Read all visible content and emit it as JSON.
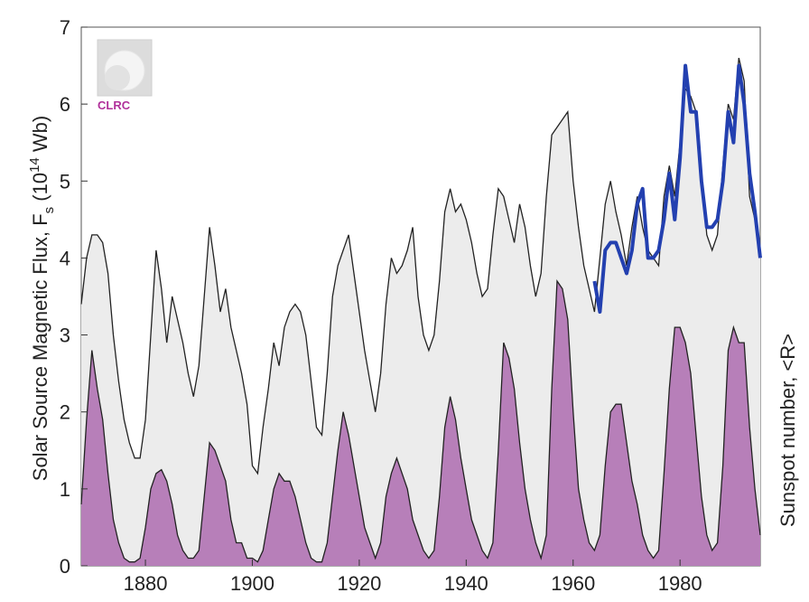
{
  "chart_data": {
    "type": "area",
    "title": "",
    "xlabel": "",
    "ylabel": "Solar Source Magnetic Flux, F",
    "ylabel_sub": "s",
    "ylabel_units_pre": " (10",
    "ylabel_units_sup": "14",
    "ylabel_units_post": " Wb)",
    "y2label": "Sunspot number, <R>",
    "xlim": [
      1868,
      1995
    ],
    "ylim": [
      0,
      7
    ],
    "x_ticks": [
      1880,
      1900,
      1920,
      1940,
      1960,
      1980
    ],
    "x_tick_labels": [
      "1880",
      "1900",
      "1920",
      "1940",
      "1960",
      "1980"
    ],
    "y_ticks": [
      0,
      1,
      2,
      3,
      4,
      5,
      6,
      7
    ],
    "y_tick_labels": [
      "0",
      "1",
      "2",
      "3",
      "4",
      "5",
      "6",
      "7"
    ],
    "logo_text": "CLRC",
    "colors": {
      "flux_fill": "#ececec",
      "flux_line": "#222222",
      "sunspot_fill": "#b77fb9",
      "sunspot_line": "#222222",
      "observed_line": "#2340b0"
    },
    "series": [
      {
        "key": "flux",
        "x": [
          1868,
          1869,
          1870,
          1871,
          1872,
          1873,
          1874,
          1875,
          1876,
          1877,
          1878,
          1879,
          1880,
          1881,
          1882,
          1883,
          1884,
          1885,
          1886,
          1887,
          1888,
          1889,
          1890,
          1891,
          1892,
          1893,
          1894,
          1895,
          1896,
          1897,
          1898,
          1899,
          1900,
          1901,
          1902,
          1903,
          1904,
          1905,
          1906,
          1907,
          1908,
          1909,
          1910,
          1911,
          1912,
          1913,
          1914,
          1915,
          1916,
          1917,
          1918,
          1919,
          1920,
          1921,
          1922,
          1923,
          1924,
          1925,
          1926,
          1927,
          1928,
          1929,
          1930,
          1931,
          1932,
          1933,
          1934,
          1935,
          1936,
          1937,
          1938,
          1939,
          1940,
          1941,
          1942,
          1943,
          1944,
          1945,
          1946,
          1947,
          1948,
          1949,
          1950,
          1951,
          1952,
          1953,
          1954,
          1955,
          1956,
          1957,
          1958,
          1959,
          1960,
          1961,
          1962,
          1963,
          1964,
          1965,
          1966,
          1967,
          1968,
          1969,
          1970,
          1971,
          1972,
          1973,
          1974,
          1975,
          1976,
          1977,
          1978,
          1979,
          1980,
          1981,
          1982,
          1983,
          1984,
          1985,
          1986,
          1987,
          1988,
          1989,
          1990,
          1991,
          1992,
          1993,
          1994,
          1995
        ],
        "values": [
          3.4,
          4.0,
          4.3,
          4.3,
          4.2,
          3.8,
          3.0,
          2.4,
          1.9,
          1.6,
          1.4,
          1.4,
          1.9,
          3.0,
          4.1,
          3.6,
          2.9,
          3.5,
          3.2,
          2.9,
          2.5,
          2.2,
          2.6,
          3.5,
          4.4,
          3.9,
          3.3,
          3.6,
          3.1,
          2.8,
          2.5,
          2.1,
          1.3,
          1.2,
          1.8,
          2.3,
          2.9,
          2.6,
          3.1,
          3.3,
          3.4,
          3.3,
          3.0,
          2.4,
          1.8,
          1.7,
          2.5,
          3.5,
          3.9,
          4.1,
          4.3,
          3.8,
          3.3,
          2.8,
          2.4,
          2.0,
          2.5,
          3.4,
          4.0,
          3.8,
          3.9,
          4.1,
          4.4,
          3.5,
          3.0,
          2.8,
          3.0,
          3.7,
          4.6,
          4.9,
          4.6,
          4.7,
          4.5,
          4.2,
          3.8,
          3.5,
          3.6,
          4.3,
          4.9,
          4.8,
          4.5,
          4.2,
          4.7,
          4.4,
          3.9,
          3.5,
          3.8,
          4.8,
          5.6,
          5.7,
          5.8,
          5.9,
          5.0,
          4.4,
          3.9,
          3.6,
          3.3,
          4.0,
          4.7,
          5.0,
          4.6,
          4.3,
          3.9,
          4.4,
          4.8,
          4.4,
          4.1,
          4.0,
          3.9,
          4.8,
          5.2,
          4.8,
          5.5,
          6.2,
          6.1,
          5.9,
          5.1,
          4.3,
          4.1,
          4.3,
          5.2,
          6.0,
          5.8,
          6.6,
          6.3,
          4.8,
          4.5,
          4.1
        ],
        "y_scale": "left"
      },
      {
        "key": "sunspot",
        "x": [
          1868,
          1869,
          1870,
          1871,
          1872,
          1873,
          1874,
          1875,
          1876,
          1877,
          1878,
          1879,
          1880,
          1881,
          1882,
          1883,
          1884,
          1885,
          1886,
          1887,
          1888,
          1889,
          1890,
          1891,
          1892,
          1893,
          1894,
          1895,
          1896,
          1897,
          1898,
          1899,
          1900,
          1901,
          1902,
          1903,
          1904,
          1905,
          1906,
          1907,
          1908,
          1909,
          1910,
          1911,
          1912,
          1913,
          1914,
          1915,
          1916,
          1917,
          1918,
          1919,
          1920,
          1921,
          1922,
          1923,
          1924,
          1925,
          1926,
          1927,
          1928,
          1929,
          1930,
          1931,
          1932,
          1933,
          1934,
          1935,
          1936,
          1937,
          1938,
          1939,
          1940,
          1941,
          1942,
          1943,
          1944,
          1945,
          1946,
          1947,
          1948,
          1949,
          1950,
          1951,
          1952,
          1953,
          1954,
          1955,
          1956,
          1957,
          1958,
          1959,
          1960,
          1961,
          1962,
          1963,
          1964,
          1965,
          1966,
          1967,
          1968,
          1969,
          1970,
          1971,
          1972,
          1973,
          1974,
          1975,
          1976,
          1977,
          1978,
          1979,
          1980,
          1981,
          1982,
          1983,
          1984,
          1985,
          1986,
          1987,
          1988,
          1989,
          1990,
          1991,
          1992,
          1993,
          1994,
          1995
        ],
        "values": [
          0.8,
          1.9,
          2.8,
          2.3,
          1.9,
          1.2,
          0.6,
          0.3,
          0.1,
          0.05,
          0.05,
          0.1,
          0.5,
          1.0,
          1.2,
          1.25,
          1.1,
          0.8,
          0.4,
          0.2,
          0.1,
          0.1,
          0.2,
          0.9,
          1.6,
          1.5,
          1.3,
          1.1,
          0.6,
          0.3,
          0.3,
          0.1,
          0.1,
          0.05,
          0.2,
          0.6,
          1.0,
          1.2,
          1.1,
          1.1,
          0.9,
          0.6,
          0.3,
          0.1,
          0.05,
          0.05,
          0.3,
          0.9,
          1.5,
          2.0,
          1.7,
          1.3,
          0.9,
          0.5,
          0.3,
          0.1,
          0.3,
          0.9,
          1.2,
          1.4,
          1.2,
          1.0,
          0.6,
          0.4,
          0.2,
          0.1,
          0.2,
          0.9,
          1.8,
          2.2,
          1.9,
          1.4,
          1.0,
          0.6,
          0.4,
          0.2,
          0.1,
          0.3,
          1.5,
          2.9,
          2.7,
          2.3,
          1.6,
          1.0,
          0.6,
          0.3,
          0.1,
          0.4,
          2.3,
          3.7,
          3.6,
          3.2,
          2.0,
          1.0,
          0.6,
          0.3,
          0.2,
          0.4,
          1.3,
          2.0,
          2.1,
          2.1,
          1.6,
          1.1,
          0.8,
          0.4,
          0.2,
          0.1,
          0.2,
          1.2,
          2.3,
          3.1,
          3.1,
          2.9,
          2.5,
          1.7,
          0.9,
          0.4,
          0.2,
          0.3,
          1.3,
          2.8,
          3.1,
          2.9,
          2.9,
          1.8,
          1.0,
          0.4
        ]
      },
      {
        "key": "observed",
        "x": [
          1964,
          1965,
          1966,
          1967,
          1968,
          1969,
          1970,
          1971,
          1972,
          1973,
          1974,
          1975,
          1976,
          1977,
          1978,
          1979,
          1980,
          1981,
          1982,
          1983,
          1984,
          1985,
          1986,
          1987,
          1988,
          1989,
          1990,
          1991,
          1992,
          1993,
          1994,
          1995
        ],
        "values": [
          3.7,
          3.3,
          4.1,
          4.2,
          4.2,
          4.0,
          3.8,
          4.1,
          4.7,
          4.9,
          4.0,
          4.0,
          4.1,
          4.5,
          5.1,
          4.5,
          5.3,
          6.5,
          5.9,
          5.9,
          5.0,
          4.4,
          4.4,
          4.5,
          5.0,
          5.9,
          5.5,
          6.5,
          6.0,
          5.1,
          4.6,
          4.0
        ]
      }
    ]
  }
}
